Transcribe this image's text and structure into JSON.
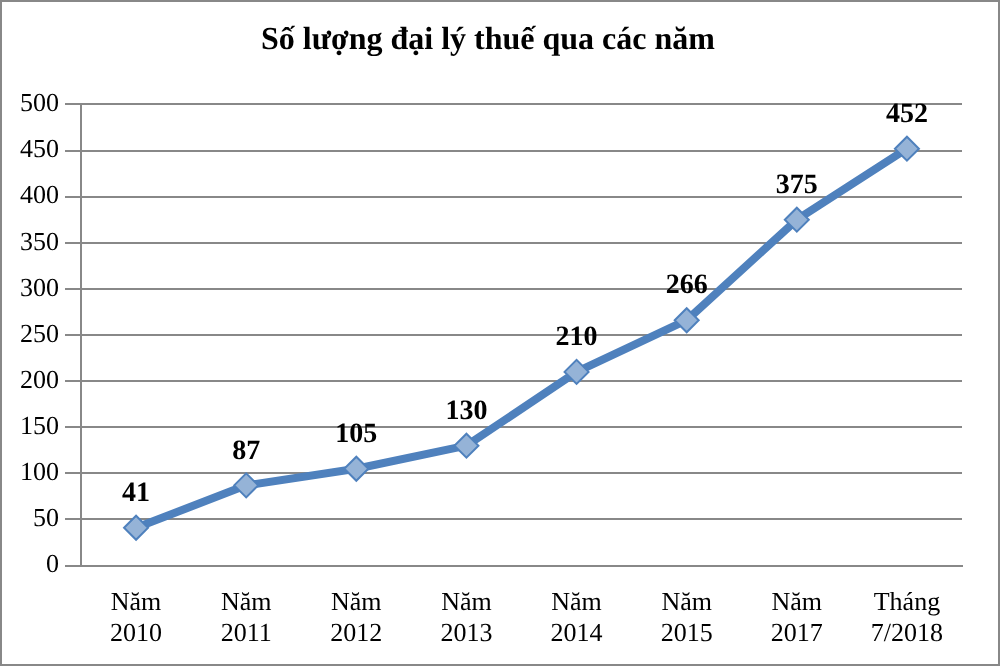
{
  "chart_data": {
    "type": "line",
    "title": "Số lượng đại lý thuế qua các năm",
    "categories": [
      "Năm 2010",
      "Năm 2011",
      "Năm 2012",
      "Năm 2013",
      "Năm 2014",
      "Năm 2015",
      "Năm 2017",
      "Tháng 7/2018"
    ],
    "series": [
      {
        "color": "#4f81bd",
        "values": [
          41,
          87,
          105,
          130,
          210,
          266,
          375,
          452
        ]
      }
    ],
    "ylim": [
      0,
      500
    ],
    "yticks": [
      0,
      50,
      100,
      150,
      200,
      250,
      300,
      350,
      400,
      450,
      500
    ],
    "grid": "y",
    "marker": "diamond",
    "line_style": "solid",
    "data_labels": true,
    "legend": false
  }
}
